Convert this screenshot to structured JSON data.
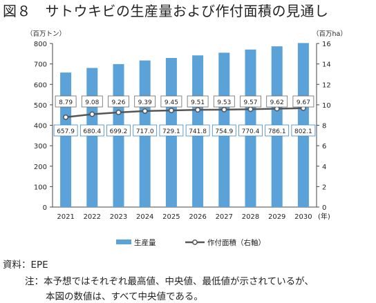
{
  "title": "図８　サトウキビの生産量および作付面積の見通し",
  "chart_data": {
    "type": "bar",
    "categories": [
      "2021",
      "2022",
      "2023",
      "2024",
      "2025",
      "2026",
      "2027",
      "2028",
      "2029",
      "2030"
    ],
    "x_unit": "(年)",
    "series": [
      {
        "name": "生産量",
        "type": "bar",
        "axis": "left",
        "values": [
          657.9,
          680.4,
          699.2,
          717.0,
          729.1,
          741.8,
          754.9,
          770.4,
          786.1,
          802.1
        ],
        "labels": [
          "657.9",
          "680.4",
          "699.2",
          "717.0",
          "729.1",
          "741.8",
          "754.9",
          "770.4",
          "786.1",
          "802.1"
        ],
        "color": "#5ba2d8"
      },
      {
        "name": "作付面積（右軸）",
        "type": "line",
        "axis": "right",
        "values": [
          8.79,
          9.08,
          9.26,
          9.39,
          9.45,
          9.51,
          9.53,
          9.57,
          9.62,
          9.67
        ],
        "labels": [
          "8.79",
          "9.08",
          "9.26",
          "9.39",
          "9.45",
          "9.51",
          "9.53",
          "9.57",
          "9.62",
          "9.67"
        ],
        "color": "#555555"
      }
    ],
    "y_left": {
      "unit": "（百万トン）",
      "ylim": [
        0,
        800
      ],
      "ticks": [
        "0",
        "100",
        "200",
        "300",
        "400",
        "500",
        "600",
        "700",
        "800"
      ]
    },
    "y_right": {
      "unit": "（百万ha）",
      "ylim": [
        0,
        16
      ],
      "ticks": [
        "0",
        "2",
        "4",
        "6",
        "8",
        "10",
        "12",
        "14",
        "16"
      ]
    },
    "grid": false,
    "legend_position": "bottom"
  },
  "notes": {
    "source": "資料：EPE",
    "note_line1": "注：本予想ではそれぞれ最高値、中央値、最低値が示されているが、",
    "note_line2": "本図の数値は、すべて中央値である。"
  }
}
